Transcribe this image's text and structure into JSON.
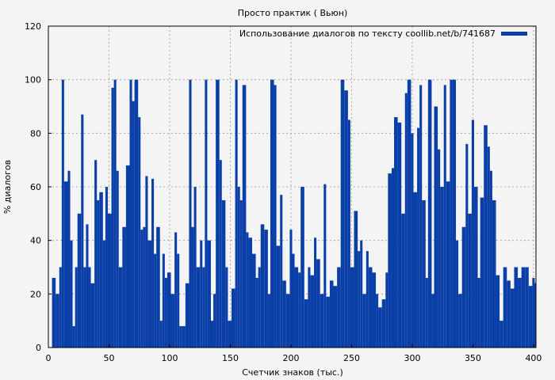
{
  "chart_data": {
    "type": "bar",
    "title": "Просто практик ( Вьюн)",
    "xlabel": "Счетчик знаков (тыс.)",
    "ylabel": "% диалогов",
    "xlim": [
      0,
      402
    ],
    "ylim": [
      0,
      120
    ],
    "x_ticks": [
      "0",
      "50",
      "100",
      "150",
      "200",
      "250",
      "300",
      "350",
      "400"
    ],
    "y_ticks": [
      "0",
      "20",
      "40",
      "60",
      "80",
      "100",
      "120"
    ],
    "grid": true,
    "legend_position": "top-right",
    "series": [
      {
        "name": "Использование диалогов по тексту coollib.net/b/741687",
        "color": "#0a3fa8",
        "x": [
          3,
          6,
          9,
          11,
          13,
          16,
          18,
          20,
          22,
          24,
          27,
          29,
          31,
          33,
          35,
          38,
          40,
          42,
          45,
          47,
          49,
          52,
          54,
          56,
          58,
          61,
          64,
          67,
          69,
          71,
          74,
          76,
          78,
          80,
          82,
          85,
          87,
          89,
          92,
          94,
          96,
          98,
          101,
          104,
          106,
          108,
          110,
          113,
          116,
          118,
          120,
          122,
          125,
          127,
          129,
          131,
          134,
          136,
          138,
          141,
          143,
          146,
          148,
          151,
          154,
          156,
          158,
          160,
          163,
          165,
          168,
          171,
          173,
          175,
          178,
          181,
          183,
          186,
          188,
          191,
          193,
          196,
          199,
          201,
          203,
          206,
          208,
          211,
          214,
          216,
          219,
          221,
          224,
          227,
          229,
          232,
          235,
          238,
          241,
          244,
          247,
          249,
          252,
          255,
          257,
          259,
          262,
          264,
          267,
          270,
          272,
          275,
          278,
          280,
          283,
          285,
          288,
          291,
          294,
          296,
          299,
          301,
          304,
          306,
          308,
          311,
          313,
          316,
          318,
          321,
          323,
          326,
          328,
          331,
          333,
          336,
          338,
          341,
          344,
          346,
          349,
          351,
          354,
          356,
          359,
          362,
          364,
          366,
          369,
          372,
          375,
          378,
          381,
          384,
          387,
          390,
          393,
          396,
          399,
          401
        ],
        "values": [
          26,
          20,
          30,
          100,
          62,
          66,
          40,
          8,
          30,
          50,
          87,
          30,
          46,
          30,
          24,
          70,
          55,
          58,
          40,
          60,
          50,
          97,
          100,
          66,
          30,
          45,
          68,
          100,
          92,
          100,
          86,
          44,
          45,
          64,
          40,
          63,
          35,
          45,
          10,
          35,
          26,
          28,
          20,
          43,
          35,
          8,
          8,
          24,
          100,
          45,
          60,
          30,
          40,
          30,
          100,
          40,
          10,
          20,
          100,
          70,
          55,
          30,
          10,
          22,
          100,
          60,
          55,
          98,
          43,
          41,
          35,
          26,
          30,
          46,
          44,
          20,
          100,
          98,
          38,
          57,
          25,
          20,
          44,
          35,
          30,
          28,
          60,
          18,
          30,
          27,
          41,
          33,
          20,
          61,
          19,
          25,
          23,
          30,
          100,
          96,
          85,
          30,
          51,
          36,
          40,
          20,
          36,
          30,
          28,
          20,
          15,
          18,
          28,
          65,
          67,
          86,
          84,
          50,
          95,
          100,
          80,
          58,
          82,
          98,
          55,
          26,
          100,
          20,
          90,
          74,
          60,
          98,
          62,
          100,
          100,
          40,
          20,
          45,
          76,
          50,
          85,
          60,
          26,
          56,
          83,
          75,
          66,
          55,
          27,
          10,
          30,
          25,
          22,
          30,
          26,
          30,
          30,
          23,
          26,
          24
        ]
      }
    ]
  }
}
